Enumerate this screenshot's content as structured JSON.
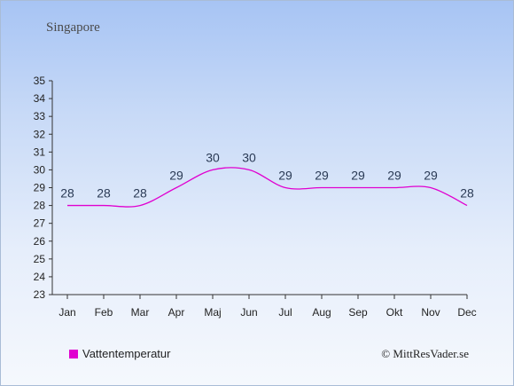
{
  "header": {
    "title": "Singapore"
  },
  "footer": {
    "credit": "© MittResVader.se"
  },
  "colors": {
    "series": "#e000d0",
    "axis": "#333333",
    "label": "#2a3a55"
  },
  "chart_data": {
    "type": "line",
    "title": "Singapore",
    "xlabel": "",
    "ylabel": "",
    "categories": [
      "Jan",
      "Feb",
      "Mar",
      "Apr",
      "Maj",
      "Jun",
      "Jul",
      "Aug",
      "Sep",
      "Okt",
      "Nov",
      "Dec"
    ],
    "series": [
      {
        "name": "Vattentemperatur",
        "values": [
          28,
          28,
          28,
          29,
          30,
          30,
          29,
          29,
          29,
          29,
          29,
          28
        ]
      }
    ],
    "data_labels": [
      "28",
      "28",
      "28",
      "29",
      "30",
      "30",
      "29",
      "29",
      "29",
      "29",
      "29",
      "28"
    ],
    "ylim": [
      23,
      35
    ],
    "yticks": [
      23,
      24,
      25,
      26,
      27,
      28,
      29,
      30,
      31,
      32,
      33,
      34,
      35
    ],
    "grid": false,
    "legend_position": "bottom-left"
  }
}
